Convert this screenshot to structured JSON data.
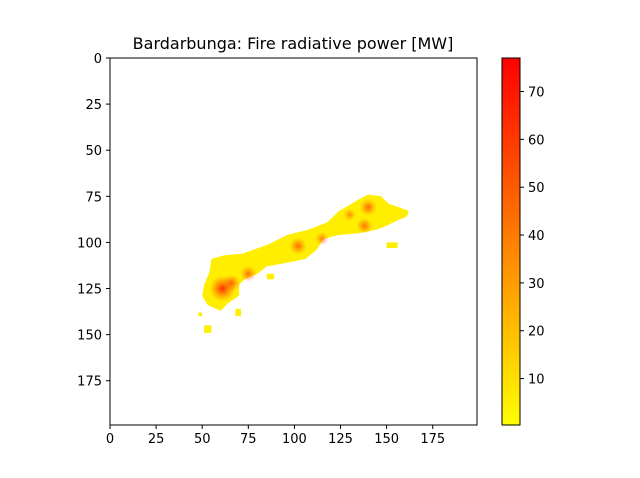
{
  "chart_data": {
    "type": "heatmap",
    "title": "Bardarbunga: Fire radiative power [MW]",
    "xlabel": "",
    "ylabel": "",
    "xlim": [
      0,
      199
    ],
    "ylim": [
      199,
      0
    ],
    "x_ticks": [
      0,
      25,
      50,
      75,
      100,
      125,
      150,
      175
    ],
    "y_ticks": [
      0,
      25,
      50,
      75,
      100,
      125,
      150,
      175
    ],
    "colorbar": {
      "label": "",
      "min": 0.3,
      "max": 77,
      "ticks": [
        10,
        20,
        30,
        40,
        50,
        60,
        70
      ],
      "colors": [
        "#ffff00",
        "#ffc000",
        "#ff8000",
        "#ff4000",
        "#ff0000"
      ]
    },
    "hotspots": [
      {
        "x": 61,
        "y": 125,
        "value": 77
      },
      {
        "x": 66,
        "y": 122,
        "value": 40
      },
      {
        "x": 75,
        "y": 117,
        "value": 35
      },
      {
        "x": 102,
        "y": 102,
        "value": 40
      },
      {
        "x": 115,
        "y": 98,
        "value": 25
      },
      {
        "x": 140,
        "y": 81,
        "value": 40
      },
      {
        "x": 138,
        "y": 91,
        "value": 35
      },
      {
        "x": 130,
        "y": 85,
        "value": 20
      }
    ],
    "fire_region": {
      "main_polygon": [
        [
          55,
          109
        ],
        [
          62,
          107
        ],
        [
          72,
          106
        ],
        [
          86,
          101
        ],
        [
          96,
          96
        ],
        [
          108,
          93
        ],
        [
          118,
          89
        ],
        [
          124,
          83
        ],
        [
          131,
          79
        ],
        [
          136,
          76
        ],
        [
          140,
          74
        ],
        [
          147,
          75
        ],
        [
          151,
          79
        ],
        [
          157,
          81
        ],
        [
          162,
          83
        ],
        [
          161,
          86
        ],
        [
          156,
          88
        ],
        [
          150,
          91
        ],
        [
          145,
          93
        ],
        [
          135,
          95
        ],
        [
          124,
          96
        ],
        [
          116,
          98
        ],
        [
          112,
          104
        ],
        [
          106,
          109
        ],
        [
          96,
          111
        ],
        [
          85,
          113
        ],
        [
          80,
          117
        ],
        [
          73,
          120
        ],
        [
          70,
          123
        ],
        [
          70,
          129
        ],
        [
          64,
          133
        ],
        [
          60,
          137
        ],
        [
          53,
          134
        ],
        [
          50,
          129
        ],
        [
          51,
          123
        ],
        [
          54,
          116
        ]
      ],
      "islands": [
        {
          "x": 51,
          "y": 145,
          "w": 4,
          "h": 4
        },
        {
          "x": 48,
          "y": 138,
          "w": 2,
          "h": 2
        },
        {
          "x": 150,
          "y": 100,
          "w": 6,
          "h": 3
        },
        {
          "x": 85,
          "y": 117,
          "w": 4,
          "h": 3
        },
        {
          "x": 68,
          "y": 136,
          "w": 3,
          "h": 4
        }
      ]
    }
  }
}
